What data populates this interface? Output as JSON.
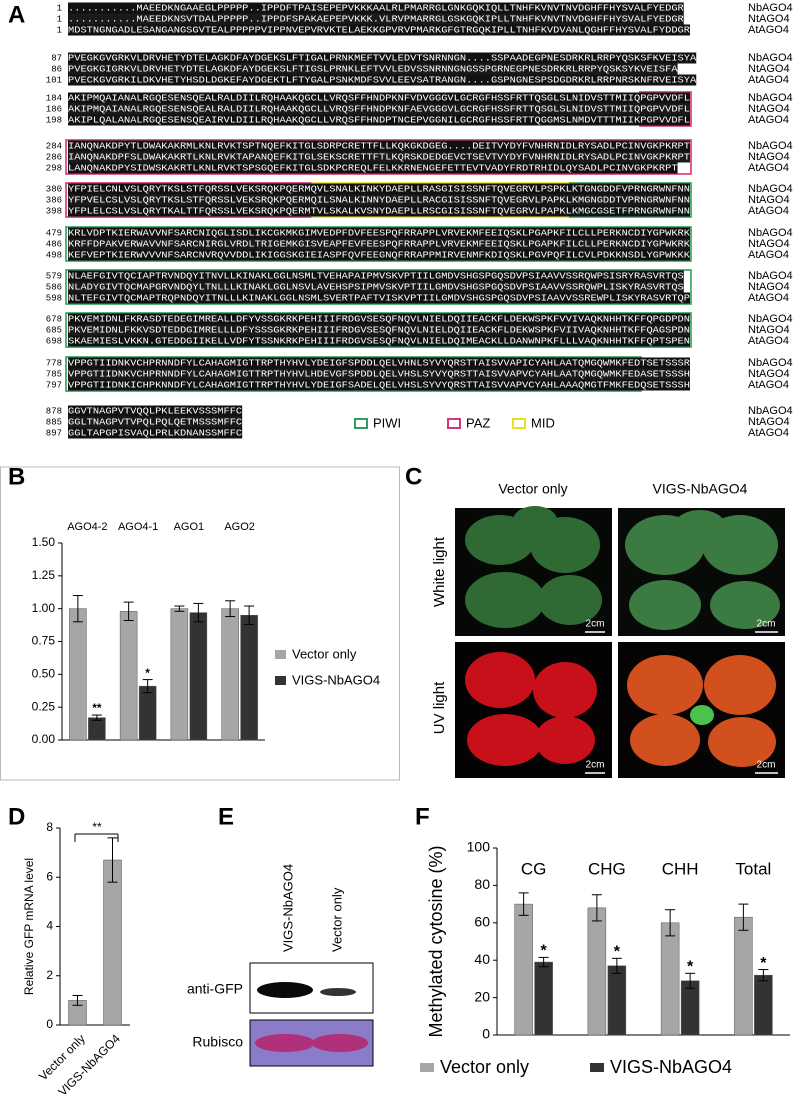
{
  "panel_labels": [
    "A",
    "B",
    "C",
    "D",
    "E",
    "F"
  ],
  "alignment": {
    "blocks": [
      {
        "rows": [
          {
            "start": 1,
            "seq": "...........MAEEDKNGAAEGLPPPPP..IPPDFTPAISEPEPVKKKAALRLPMARRGLGNKGQKIQLLTNHFKVNVTNVDGHFFHYSVALFYEDGR",
            "name": "NbAGO4"
          },
          {
            "start": 1,
            "seq": "...........MAEEDKNSVTDALPPPPP..IPPDFSPAKAEPEPVKKK.VLRVPMARRGLGSKGQKIPLLTNHFKVNVTNVDGHFFHYSVALFYEDGR",
            "name": "NtAGO4"
          },
          {
            "start": 1,
            "seq": "MDSTNGNGADLESANGANGSGVTEALPPPPPVIPPNVEPVRVKTELAEKKGPVRVPMARKGFGTRGQKIPLLTNHFKVDVANLQGHFFHYSVALFYDDGR",
            "name": "AtAGO4"
          }
        ]
      },
      {
        "rows": [
          {
            "start": 87,
            "seq": "PVEGKGVGRKVLDRVHETYDTELAGKDFAYDGEKSLFTIGALPRNKMEFTVVLEDVTSNRNNGN....SSPAADEGPNESDRKRLRRPYQSKSFKVEISYA",
            "name": "NbAGO4"
          },
          {
            "start": 86,
            "seq": "PVEGKGIGRKVLDRVHETYDTELAGKDFAYDGEKSLFTIGSLPRNKLEFTVVLEDVSSNRNNGNGSSPGRNEGPNESDRKRLRRPYQSKSYKVEISFA",
            "name": "NtAGO4"
          },
          {
            "start": 101,
            "seq": "PVECKGVGRKILDKVHETYHSDLDGKEFAYDGEKTLFTYGALPSNKMDFSVVLEEVSATRANGN....GSPNGNESPSDGDRKRLRRPNRSKNFRVEISYA",
            "name": "AtAGO4"
          }
        ]
      },
      {
        "rows": [
          {
            "start": 184,
            "seq": "AKIPMQAIANALRGQESENSQEALRALDIILRQHAAKQGCLLVRQSFFHNDPKNFVDVGGGVLGCRGFHSSFRTTQSGLSLNIDVSTTMIIQPGPVVDFL",
            "name": "NbAGO4"
          },
          {
            "start": 186,
            "seq": "AKIPMQAIANALRGQESENSQEALRALDIILRQHAAKQGCLLVRQSFFHNDPKNFAEVGGGVLGCRGFHSSFRTTQSGLSLNIDVSTTMIIQPGPVVDFL",
            "name": "NtAGO4"
          },
          {
            "start": 198,
            "seq": "AKIPLQALANALRGQESENSQEAIRVLDIILRQHAAKQGCLLVRQSFFHNDPTNCEPVGGNILGCRGFHSSFRTTQGGMSLNMDVTTTMIIKPGPVVDFL",
            "name": "AtAGO4"
          }
        ]
      },
      {
        "rows": [
          {
            "start": 284,
            "seq": "IANQNAKDPYTLDWAKAKRMLKNLRVKTSPTNQEFKITGLSDRPCRETTFLLKQKGKDGEG....DEITVYDYFVNHRNIDLRYSADLPCINVGKPKRPT",
            "name": "NbAGO4"
          },
          {
            "start": 286,
            "seq": "IANQNAKDPFSLDWAKAKRTLKNLRVKTAPANQEFKITGLSEKSCRETTFTLKQRSKDEDGEVCTSEVTVYDYFVNHRNIDLRYSADLPCINVGKPKRPT",
            "name": "NtAGO4"
          },
          {
            "start": 298,
            "seq": "LANQNAKDPYSIDWSKAKRTLKNLRVKTSPSGQEFKITGLSDKPCREQLFELKKRNENGEFETTEVTVADYFRDTRHIDLQYSADLPCINVGKPKRPT",
            "name": "AtAGO4"
          }
        ]
      },
      {
        "rows": [
          {
            "start": 380,
            "seq": "YFPIELCNLVSLQRYTKSLSTFQRSSLVEKSRQKPQERMQVLSNALKINKYDAEPLLRASGISISSNFTQVEGRVLPSPKLKTGNGDDFVPRNGRWNFNN",
            "name": "NbAGO4"
          },
          {
            "start": 386,
            "seq": "YFPVELCSLVSLQRYTKSLSTFQRSSLVEKSRQKPQERMQILSNALKINNYDAEPLLRACGISISSNFTQVEGRVLPAPKLKMGNGDDTVPRNGRWNFNN",
            "name": "NtAGO4"
          },
          {
            "start": 398,
            "seq": "YFPLELCSLVSLQRYTKALTTFQRSSLVEKSRQKPQERMTVLSKALKVSNYDAEPLLRSCGISISSNFTQVEGRVLPAPKLKMGCGSETFPRNGRWNFNN",
            "name": "AtAGO4"
          }
        ]
      },
      {
        "rows": [
          {
            "start": 479,
            "seq": "KRLVDPTKIERWAVVNFSARCNIQGLISDLIKCGKMKGIMVEDPFDVFEESPQFRRAPPLVRVEKMFEEIQSKLPGAPKFILCLLPERKNCDIYGPWKRK",
            "name": "NbAGO4"
          },
          {
            "start": 486,
            "seq": "KRFFDPAKVERWAVVNFSARCNIRGLVRDLTRIGEMKGISVEAPFEVFEESPQFRRAPPLVRVEKMFEEIQSKLPGAPKFILCLLPERKNCDIYGPWKRK",
            "name": "NtAGO4"
          },
          {
            "start": 498,
            "seq": "KEFVEPTKIERWVVVNFSARCNVRQVVDDLIKIGGSKGIEIASPFQVFEEGNQFRRAPPMIRVENMFKDIQSKLPGVPQFILCVLPDKKNSDLYGPWKKK",
            "name": "AtAGO4"
          }
        ]
      },
      {
        "rows": [
          {
            "start": 579,
            "seq": "NLAEFGIVTQCIAPTRVNDQYITNVLLKINAKLGGLNSMLTVEHAPAIPMVSKVPTIILGMDVSHGSPGQSDVPSIAAVVSSRQWPSISRYRASVRTQS",
            "name": "NbAGO4"
          },
          {
            "start": 586,
            "seq": "NLADYGIVTQCMAPGRVNDQYLTNLLLKINAKLGGLNSVLAVEHSPSIPMVSKVPTIILGMDVSHGSPGQSDVPSIAAVVSSRQWPLISKYRASVRTQS",
            "name": "NtAGO4"
          },
          {
            "start": 598,
            "seq": "NLTEFGIVTQCMAPTRQPNDQYITNLLLKINAKLGGLNSMLSVERTPAFTVISKVPTIILGMDVSHGSPGQSDVPSIAAVVSSREWPLISKYRASVRTQP",
            "name": "AtAGO4"
          }
        ]
      },
      {
        "rows": [
          {
            "start": 678,
            "seq": "PKVEMIDNLFKRASDTEDEGIMREALLDFYVSSGKRKPEHIIIFRDGVSESQFNQVLNIELDQIIEACKFLDEKWSPKFVVIVAQKNHHTKFFQPGDPDN",
            "name": "NbAGO4"
          },
          {
            "start": 685,
            "seq": "PKVEMIDNLFKKVSDTEDDGIMRELLLDFYSSSGKRKPEHIIIFRDGVSESQFNQVLNIELDQIIEACKFLDEKWSPKFVIIVAQKNHHTKFFQAGSPDN",
            "name": "NtAGO4"
          },
          {
            "start": 698,
            "seq": "SKAEMIESLVKKN.GTEDDGIIKELLVDFYTSSNKRKPEHIIIFRDGVSESQFNQVLNIELDQIMEACKLLDANWNPKFLLLVAQKNHHTKFFQPTSPEN",
            "name": "AtAGO4"
          }
        ]
      },
      {
        "rows": [
          {
            "start": 778,
            "seq": "VPPGTIIDNKVCHPRNNDFYLCAHAGMIGTTRPTHYHVLYDEIGFSPDDLQELVHNLSYVYQRSTTAISVVAPICYAHLAATQMGQWMKFEDTSETSSSR",
            "name": "NbAGO4"
          },
          {
            "start": 785,
            "seq": "VPPGTIIDNKVCHPRNNDFYLCAHAGMIGTTRPTHYHVLHDEVGFSPDDLQELVHSLSYVYQRSTTAISVVAPVCYAHLAATQMGQWMKFEDASETSSSH",
            "name": "NtAGO4"
          },
          {
            "start": 797,
            "seq": "VPPGTIIDNKICHPKNNDFYLCAHAGMIGTTRPTHYHVLYDEIGFSADELQELVHSLSYVYQRSTTAISVVAPVCYAHLAAAQMGTFMKFEDQSETSSSH",
            "name": "AtAGO4"
          }
        ]
      },
      {
        "rows": [
          {
            "start": 878,
            "seq": "GGVTNAGPVTVQQLPKLEEKVSSSMFFC",
            "name": "NbAGO4"
          },
          {
            "start": 885,
            "seq": "GGLTNAGPVTVPQLPQLQETMSSSMFFC",
            "name": "NtAGO4"
          },
          {
            "start": 897,
            "seq": "GGLTAPGPISVAQLPRLKDNANSSMFFC",
            "name": "AtAGO4"
          }
        ]
      }
    ],
    "legend": [
      {
        "name": "PIWI",
        "color": "#2ca05a"
      },
      {
        "name": "PAZ",
        "color": "#d6337a"
      },
      {
        "name": "MID",
        "color": "#e8e020"
      }
    ]
  },
  "chart_data": [
    {
      "type": "bar",
      "categories": [
        "AGO4-2",
        "AGO4-1",
        "AGO1",
        "AGO2"
      ],
      "series": [
        {
          "name": "Vector only",
          "color": "#a6a6a6",
          "values": [
            1.0,
            0.98,
            1.0,
            1.0
          ],
          "errors": [
            0.1,
            0.07,
            0.02,
            0.06
          ]
        },
        {
          "name": "VIGS-NbAGO4",
          "color": "#333333",
          "values": [
            0.17,
            0.41,
            0.97,
            0.95
          ],
          "errors": [
            0.02,
            0.05,
            0.07,
            0.07
          ],
          "annotations": [
            "**",
            "*",
            null,
            null
          ]
        }
      ],
      "ylim": [
        0,
        1.5
      ],
      "yticks": [
        {
          "value": 0,
          "label": "0.00"
        },
        {
          "value": 0.25,
          "label": "0.25"
        },
        {
          "value": 0.5,
          "label": "0.50"
        },
        {
          "value": 0.75,
          "label": "0.75"
        },
        {
          "value": 1,
          "label": "1.00"
        },
        {
          "value": 1.25,
          "label": "1.25"
        },
        {
          "value": 1.5,
          "label": "1.50"
        }
      ]
    },
    {
      "type": "bar",
      "y_label": "Relative GFP mRNA level",
      "categories": [
        "Vector only",
        "VIGS-NbAGO4"
      ],
      "series": [
        {
          "color": "#a6a6a6",
          "values": [
            1.0,
            6.7
          ],
          "errors": [
            0.2,
            0.9
          ]
        }
      ],
      "annotation": "**",
      "ylim": [
        0,
        8
      ],
      "yticks": [
        0,
        2,
        4,
        6,
        8
      ]
    },
    {
      "type": "bar",
      "y_label": "Methylated cytosine (%)",
      "categories": [
        "CG",
        "CHG",
        "CHH",
        "Total"
      ],
      "series": [
        {
          "name": "Vector only",
          "color": "#a6a6a6",
          "values": [
            70,
            68,
            60,
            63
          ],
          "errors": [
            6,
            7,
            7,
            7
          ]
        },
        {
          "name": "VIGS-NbAGO4",
          "color": "#333333",
          "values": [
            39,
            37,
            29,
            32
          ],
          "errors": [
            2.5,
            4,
            4,
            3
          ],
          "annotations": [
            "*",
            "*",
            "*",
            "*"
          ]
        }
      ],
      "ylim": [
        0,
        100
      ],
      "yticks": [
        0,
        20,
        40,
        60,
        80,
        100
      ]
    }
  ],
  "photos": {
    "columns": [
      "Vector only",
      "VIGS-NbAGO4"
    ],
    "rows": [
      "White light",
      "UV light"
    ],
    "scale_bars": [
      "2cm",
      "2cm",
      "2cm",
      "2cm"
    ]
  },
  "blot": {
    "lanes": [
      "VIGS-NbAGO4",
      "Vector only"
    ],
    "rows": [
      "anti-GFP",
      "Rubisco"
    ]
  }
}
